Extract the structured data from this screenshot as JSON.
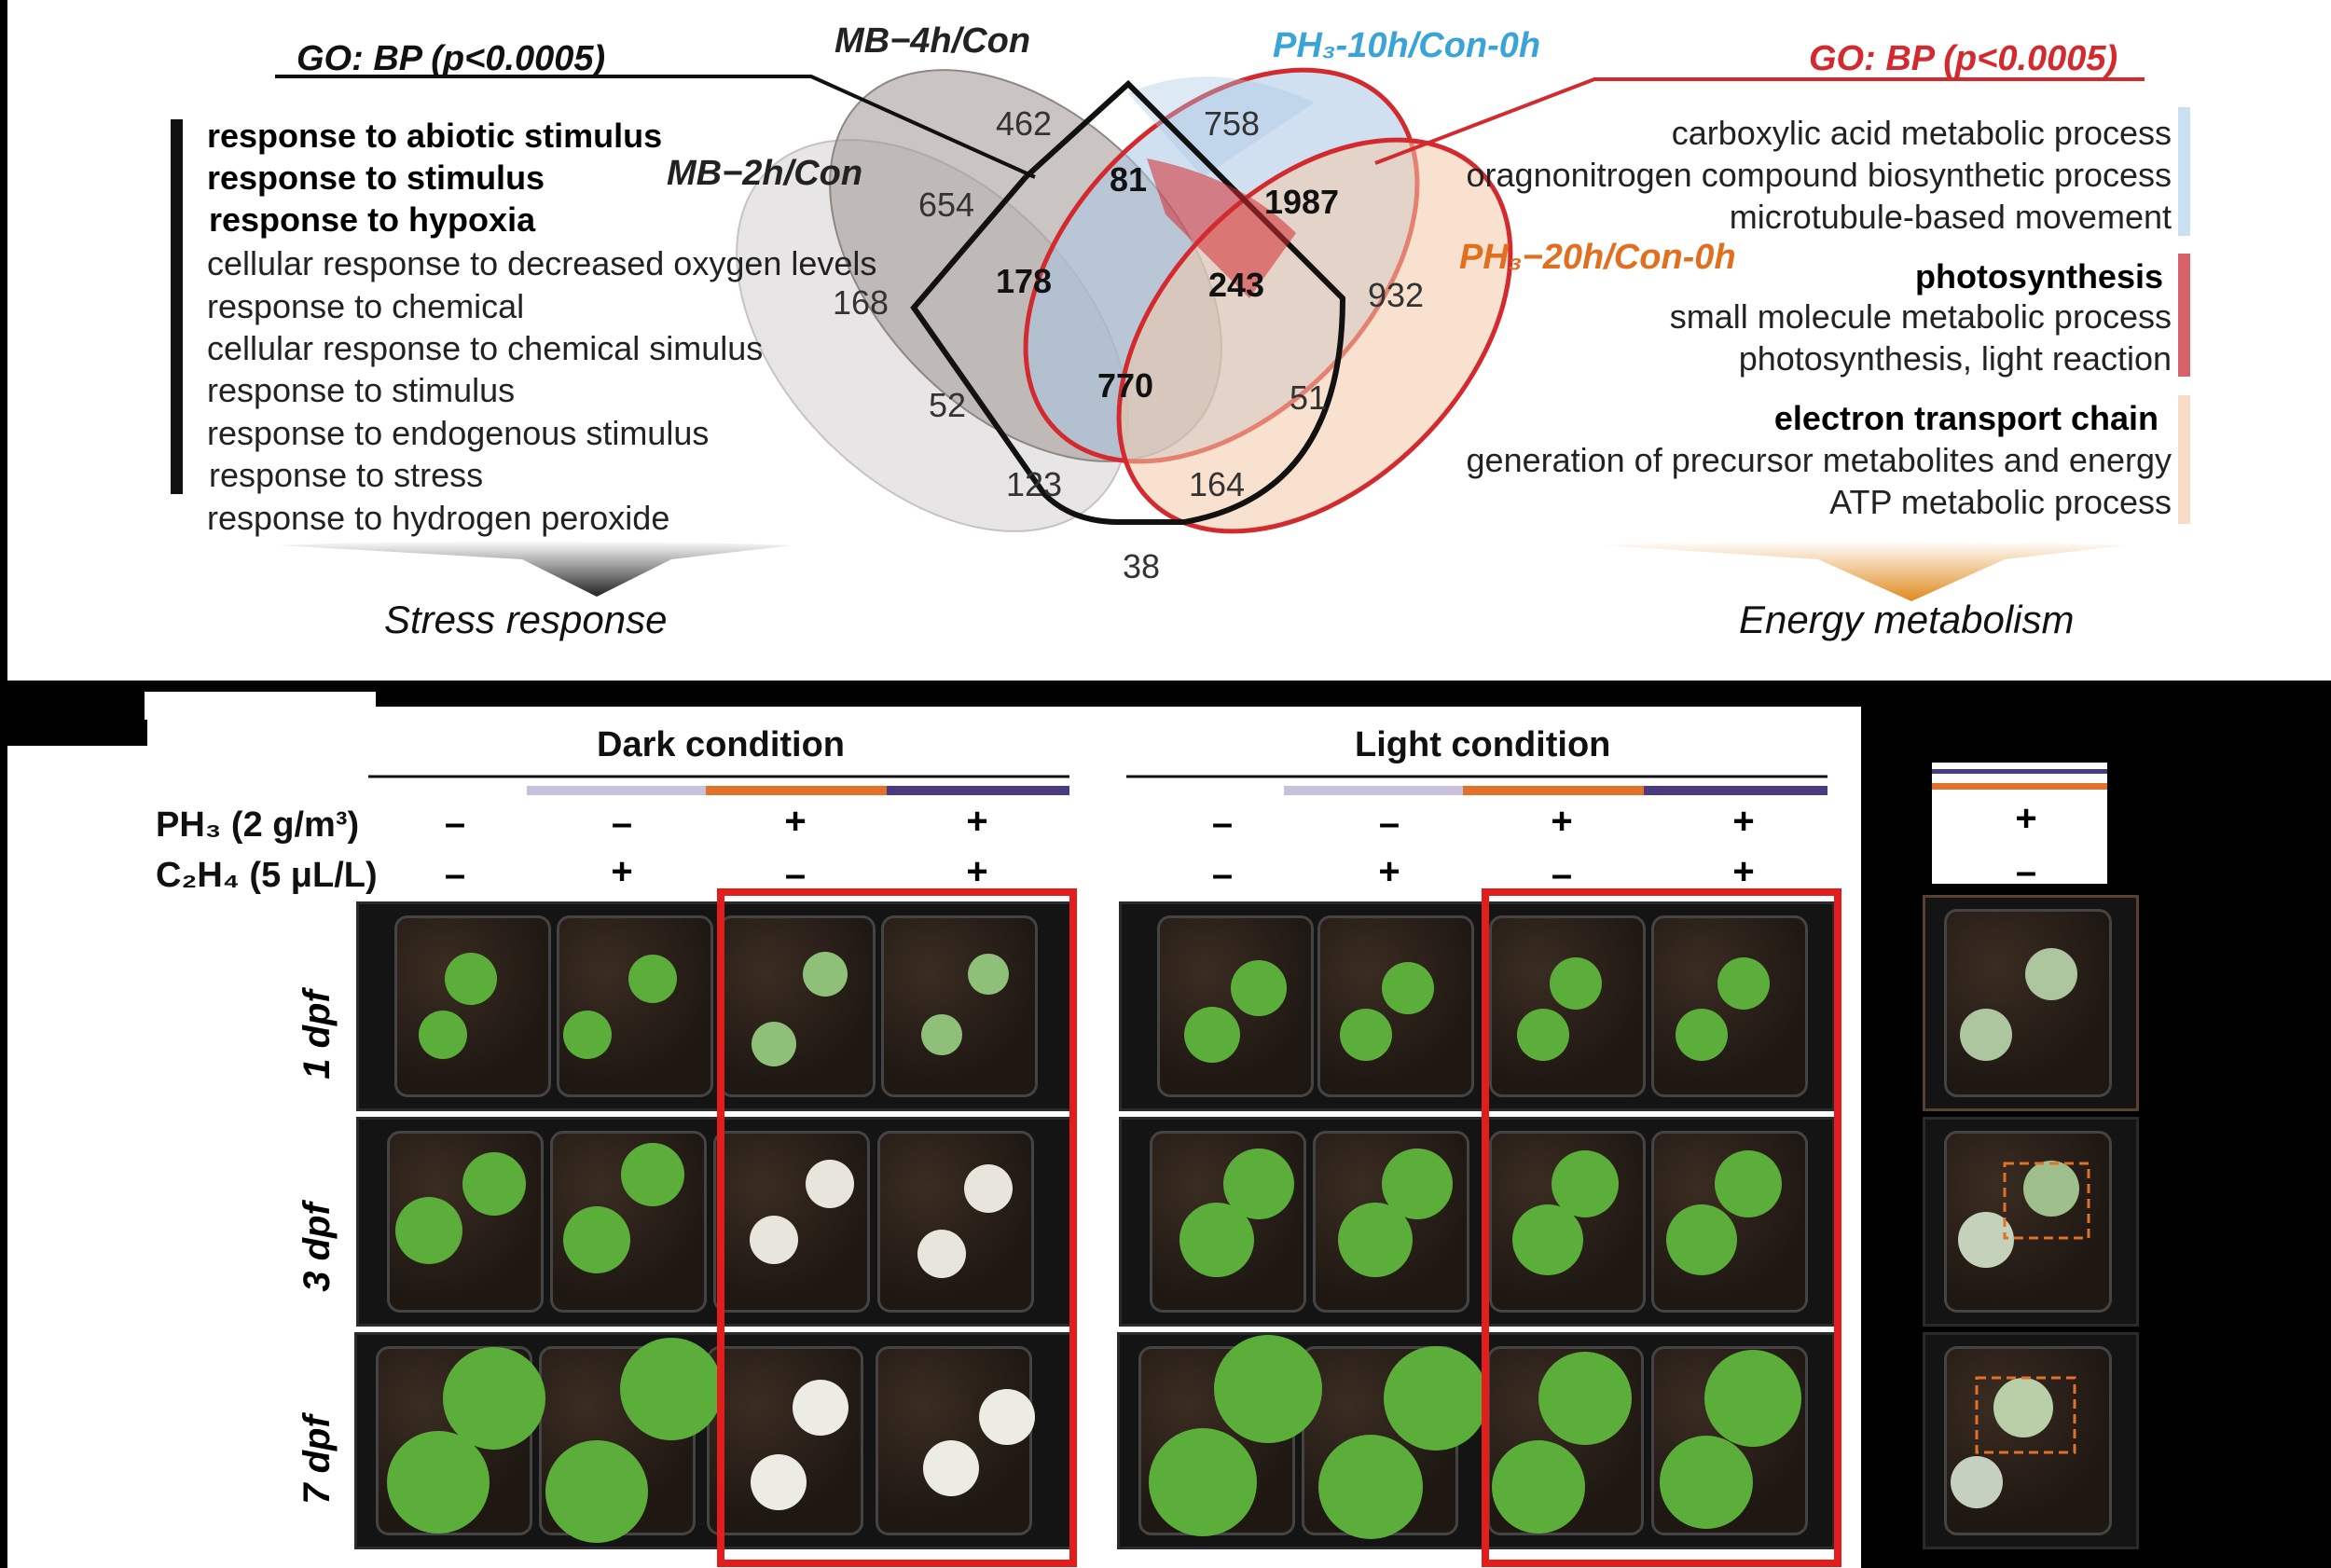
{
  "venn": {
    "sets": {
      "mb4h": "MB−4h/Con",
      "mb2h": "MB−2h/Con",
      "ph3_10h": "PH₃-10h/Con-0h",
      "ph3_20h": "PH₃−20h/Con-0h"
    },
    "counts": {
      "c462": "462",
      "c758": "758",
      "c81": "81",
      "c1987": "1987",
      "c654": "654",
      "c178": "178",
      "c243": "243",
      "c932": "932",
      "c168": "168",
      "c770": "770",
      "c52": "52",
      "c51": "51",
      "c123": "123",
      "c164": "164",
      "c38": "38"
    },
    "colors": {
      "mb4h": "#9e9692",
      "mb2h": "#d4cfd0",
      "ph3_10h": "#a9c7e3",
      "ph3_20h": "#f3c9a8",
      "ph3_border": "#d32a2f"
    }
  },
  "go_left": {
    "title": "GO: BP (p<0.0005)",
    "bold_terms": [
      "response to abiotic stimulus",
      "response to stimulus",
      "response to hypoxia"
    ],
    "terms": [
      "cellular response to decreased oxygen levels",
      "response to chemical",
      "cellular response to chemical simulus",
      "response to stimulus",
      "response to endogenous stimulus",
      "response to stress",
      "response to hydrogen peroxide"
    ],
    "summary": "Stress response"
  },
  "go_right": {
    "title": "GO: BP (p<0.0005)",
    "group1": [
      "carboxylic acid metabolic process",
      "oragnonitrogen compound biosynthetic process",
      "microtubule-based movement"
    ],
    "group2_bold": "photosynthesis",
    "group2": [
      "small molecule metabolic process",
      "photosynthesis, light reaction"
    ],
    "group3_bold": "electron transport chain",
    "group3": [
      "generation of precursor metabolites and energy",
      "ATP metabolic process"
    ],
    "summary": "Energy metabolism",
    "colors": {
      "group1": "#c9dff2",
      "group2": "#d9616b",
      "group3": "#f8dcc8",
      "title": "#d32a2f"
    }
  },
  "treatments": {
    "dark_title": "Dark condition",
    "light_title": "Light condition",
    "ph3_label": "PH₃  (2 g/m³)",
    "c2h4_label": "C₂H₄ (5 μL/L)",
    "ph3_signs": [
      "–",
      "–",
      "+",
      "+"
    ],
    "c2h4_signs": [
      "–",
      "+",
      "–",
      "+"
    ],
    "normal_ph3": "+",
    "normal_c2h4": "–",
    "bar_colors": [
      "#c8c0dc",
      "#e0702a",
      "#4a3a80"
    ],
    "highlight_color": "#e31c1c"
  },
  "timepoints": [
    "1 dpf",
    "3 dpf",
    "7 dpf"
  ]
}
